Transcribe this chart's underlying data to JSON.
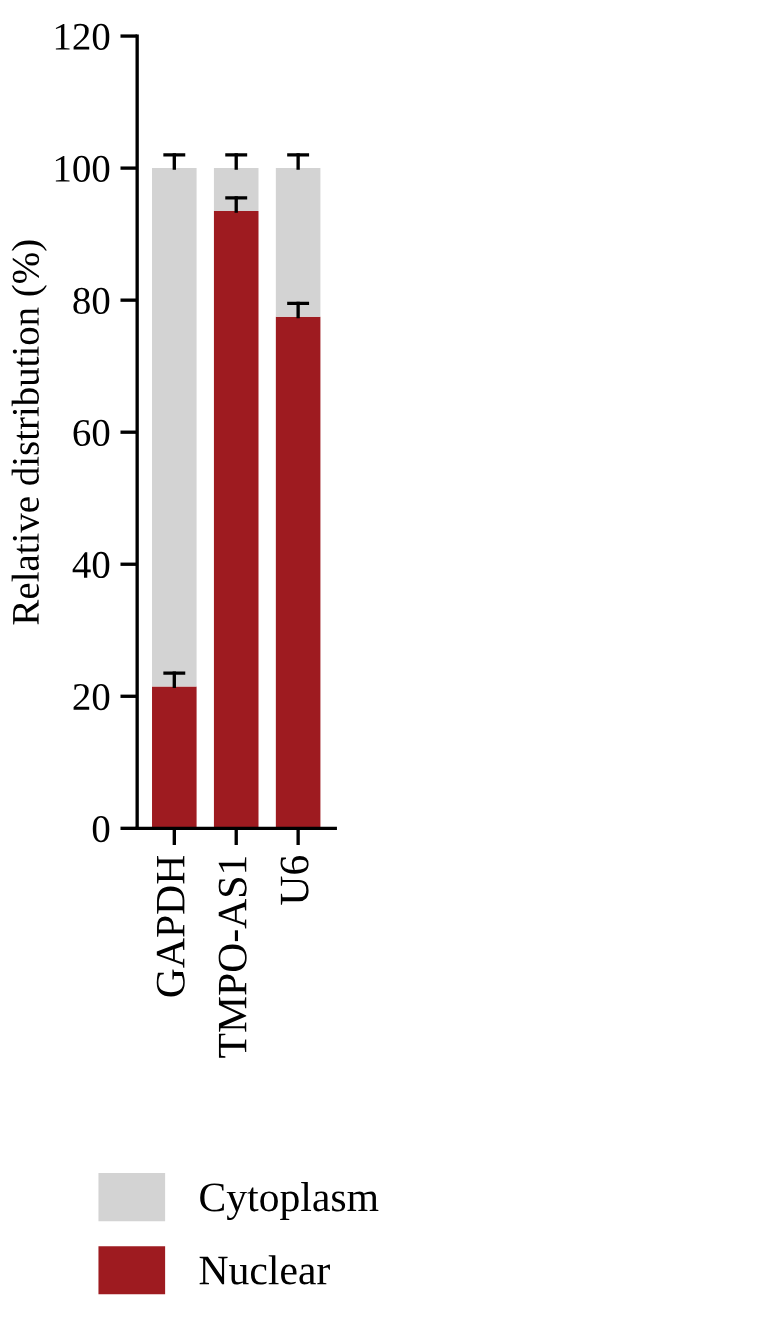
{
  "chart_data": {
    "type": "bar",
    "stacked": true,
    "ylabel": "Relative distribution (%)",
    "categories": [
      "GAPDH",
      "TMPO-AS1",
      "U6"
    ],
    "series": [
      {
        "name": "Nuclear",
        "color": "#9e1b20",
        "values": [
          21.5,
          93.5,
          77.5
        ],
        "errors": [
          [
            21.5,
            23.5
          ],
          [
            93.5,
            95.5
          ],
          [
            77.5,
            79.5
          ]
        ]
      },
      {
        "name": "Cytoplasm",
        "color": "#d3d3d3",
        "values": [
          78.5,
          6.5,
          22.5
        ],
        "errors": [
          [
            100,
            102
          ],
          [
            100,
            102
          ],
          [
            100,
            102
          ]
        ]
      }
    ],
    "ylim": [
      0,
      120
    ],
    "yticks": [
      0,
      20,
      40,
      60,
      80,
      100,
      120
    ],
    "grid": false,
    "legend": "bottom"
  }
}
